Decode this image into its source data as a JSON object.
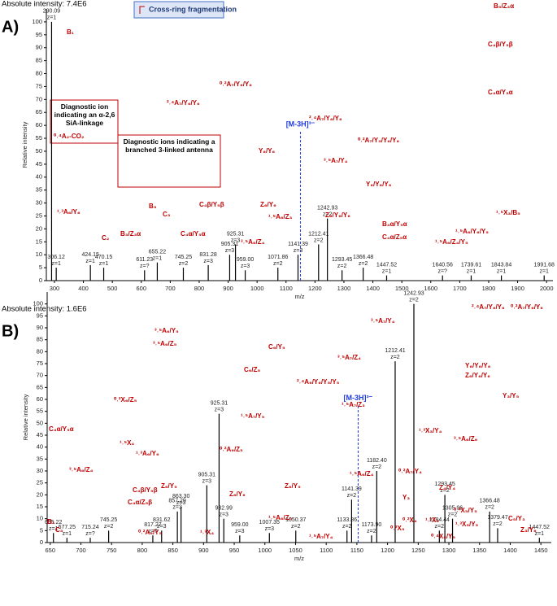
{
  "chart_data": [
    {
      "type": "stem",
      "panel_label": "A)",
      "intensity": "Absolute intensity: 7.4E6",
      "x_label": "m/z",
      "y_label": "Relative intensity",
      "color": "#000000",
      "annotation_color": "#c00000",
      "xlim": [
        272,
        2022
      ],
      "xticks": [
        300,
        400,
        500,
        600,
        700,
        800,
        900,
        1000,
        1100,
        1200,
        1300,
        1400,
        1500,
        1600,
        1700,
        1800,
        1900,
        2000
      ],
      "ylim": [
        0,
        105
      ],
      "yticks": [
        0,
        5,
        10,
        15,
        20,
        25,
        30,
        35,
        40,
        45,
        50,
        55,
        60,
        65,
        70,
        75,
        80,
        85,
        90,
        95,
        100
      ],
      "x": [
        290.09,
        306.12,
        424.15,
        470.15,
        611.23,
        655.22,
        745.25,
        831.28,
        905.31,
        925.31,
        959.0,
        1071.86,
        1141.39,
        1212.41,
        1242.93,
        1293.45,
        1366.48,
        1447.52,
        1640.56,
        1739.61,
        1843.84,
        1991.68
      ],
      "x_labels": [
        "290.09",
        "306.12",
        "424.15",
        "470.15",
        "611.23",
        "655.22",
        "745.25",
        "831.28",
        "905.31",
        "925.31",
        "959.00",
        "1071.86",
        "1141.39",
        "1212.41",
        "1242.93",
        "1293.45",
        "1366.48",
        "1447.52",
        "1640.56",
        "1739.61",
        "1843.84",
        "1991.68"
      ],
      "charge_labels": [
        "z=1",
        "z=1",
        "z=1",
        "z=1",
        "z=?",
        "z=1",
        "z=2",
        "z=3",
        "z=3",
        "z=3",
        "z=3",
        "z=2",
        "z=3",
        "z=2",
        "z=2",
        "z=2",
        "z=2",
        "z=1",
        "z=?",
        "z=1",
        "z=1",
        "z=1"
      ],
      "values": [
        100,
        5,
        6,
        5,
        4,
        7,
        5,
        6,
        10,
        14,
        4,
        5,
        10,
        14,
        24,
        4,
        5,
        2,
        2,
        2,
        2,
        2
      ],
      "precursor": {
        "label": "[M-3H]³⁻",
        "x": 1150
      },
      "legend": "Cross-ring fragmentation",
      "boxes": [
        "Diagnostic ion indicating an α-2,6 SiA-linkage",
        "Diagnostic ions indicating a branched 3-linked antenna"
      ],
      "annotations": [
        "B₁",
        "⁰˒⁴A₂-CO₂",
        "¹˒³A₆/Y₆",
        "C₂",
        "B₃",
        "C₃",
        "B₃/Z₃α",
        "C₄α/Y₅α",
        "C₄β/Y₅β",
        "²˒⁴A₇/Y₆/Y₆",
        "⁰˒²A₇/Y₆/Y₆",
        "Y₆/Y₆",
        "Z₆/Y₆",
        "³˒⁵A₆/Z₄",
        "¹˒⁵A₆/Z₃",
        "³˒⁵A₇/Y₄",
        "²˒⁴A₇/Y₆/Y₆",
        "⁰˒²A₇/Y₅/Y₆/Y₆",
        "Y₆/Y₆/Y₆",
        "Z₆/Y₆/Y₆",
        "B₄α/Y₅α",
        "C₄α/Z₅α",
        "¹˒⁵A₆/Z₄/Y₅",
        "¹˒⁵A₆/Y₆/Y₅",
        "¹˒⁵X₃/B₅",
        "B₅/Z₃α",
        "C₄β/Y₅β",
        "C₄α/Y₅α"
      ]
    },
    {
      "type": "stem",
      "panel_label": "B)",
      "intensity": "Absolute intensity: 1.6E6",
      "x_label": "m/z",
      "y_label": "Relative intensity",
      "color": "#000000",
      "annotation_color": "#c00000",
      "xlim": [
        645,
        1467
      ],
      "xticks": [
        650,
        700,
        750,
        800,
        850,
        900,
        950,
        1000,
        1050,
        1100,
        1150,
        1200,
        1250,
        1300,
        1350,
        1400,
        1450
      ],
      "ylim": [
        0,
        105
      ],
      "yticks": [
        0,
        5,
        10,
        15,
        20,
        25,
        30,
        35,
        40,
        45,
        50,
        55,
        60,
        65,
        70,
        75,
        80,
        85,
        90,
        95,
        100
      ],
      "x": [
        655.22,
        677.25,
        715.24,
        745.25,
        817.27,
        831.62,
        857.29,
        863.3,
        905.31,
        925.31,
        932.99,
        959.0,
        1007.35,
        1050.37,
        1133.86,
        1141.39,
        1173.9,
        1182.4,
        1212.41,
        1242.93,
        1284.44,
        1293.45,
        1305.96,
        1366.48,
        1379.47,
        1447.52
      ],
      "x_labels": [
        "655.22",
        "677.25",
        "715.24",
        "745.25",
        "817.27",
        "831.62",
        "857.29",
        "863.30",
        "905.31",
        "925.31",
        "932.99",
        "959.00",
        "1007.35",
        "1050.37",
        "1133.86",
        "1141.39",
        "1173.90",
        "1182.40",
        "1212.41",
        "1242.93",
        "1284.44",
        "1293.45",
        "1305.96",
        "1366.48",
        "1379.47",
        "1447.52"
      ],
      "charge_labels": [
        "z=1",
        "z=1",
        "z=?",
        "z=2",
        "z=?",
        "z=3",
        "z=3",
        "z=3",
        "z=3",
        "z=3",
        "z=3",
        "z=3",
        "z=3",
        "z=2",
        "z=2",
        "z=2",
        "z=2",
        "z=2",
        "z=2",
        "z=2",
        "z=2",
        "z=2",
        "z=2",
        "z=2",
        "z=2",
        "z=1"
      ],
      "values": [
        4,
        2,
        2,
        5,
        3,
        5,
        13,
        15,
        24,
        54,
        10,
        3,
        4,
        5,
        5,
        18,
        3,
        30,
        76,
        100,
        5,
        20,
        10,
        13,
        6,
        2
      ],
      "precursor": {
        "label": "[M-3H]³⁻",
        "x": 1152
      },
      "annotations": [
        "C₄α/Y₅α",
        "¹˒⁵X₄",
        "⁰˒²X₆/Z₅",
        "³˒⁵A₆/Z₄",
        "¹˒³A₆/Y₆",
        "³˒⁵A₆/Y₅",
        "³˒⁵A₆/Z₅",
        "C₄β/Y₅β",
        "C₄α/Z₅β",
        "Z₆/Y₅",
        "⁰˒²A₆/Z₅",
        "C₆/Z₅",
        "C₆/Y₅",
        "¹˒⁵A₇/Y₅",
        "Z₆/Y₆",
        "¹˒³X₄",
        "⁰˒²A₆/Y₅",
        "B₁",
        "C₃",
        "²˒⁴A₆/Y₆/Y₅/Y₅",
        "¹˒⁵A₆/Z₅",
        "¹˒⁵A₇/Y₄",
        "³˒⁵A₇/Z₄",
        "³˒⁵A₇/Y₄",
        "¹˒⁵A₇/Z₃",
        "¹˒⁵A₆/Z₄",
        "⁰˒²X₅",
        "²˒⁴A₇/Y₆/Y₆",
        "⁰˒²A₇/Y₆/Y₆",
        "Y₆/Y₆/Y₆",
        "Z₆/Y₆/Y₆",
        "Y₃/Y₅",
        "¹˒³X₃/Y₄",
        "³˒⁵A₆/Z₆",
        "⁰˒²A₇/Y₄",
        "Y₃",
        "¹˒³X₃",
        "⁰˒²X₄",
        "Z₄/Y₄",
        "⁰˒²X₅/Y₅",
        "¹˒³X₅/Y₅",
        "⁰˒⁴X₅/Y₅",
        "C₅/Y₃",
        "Z₃/Y₆",
        "Z₆/Y₅"
      ]
    }
  ]
}
